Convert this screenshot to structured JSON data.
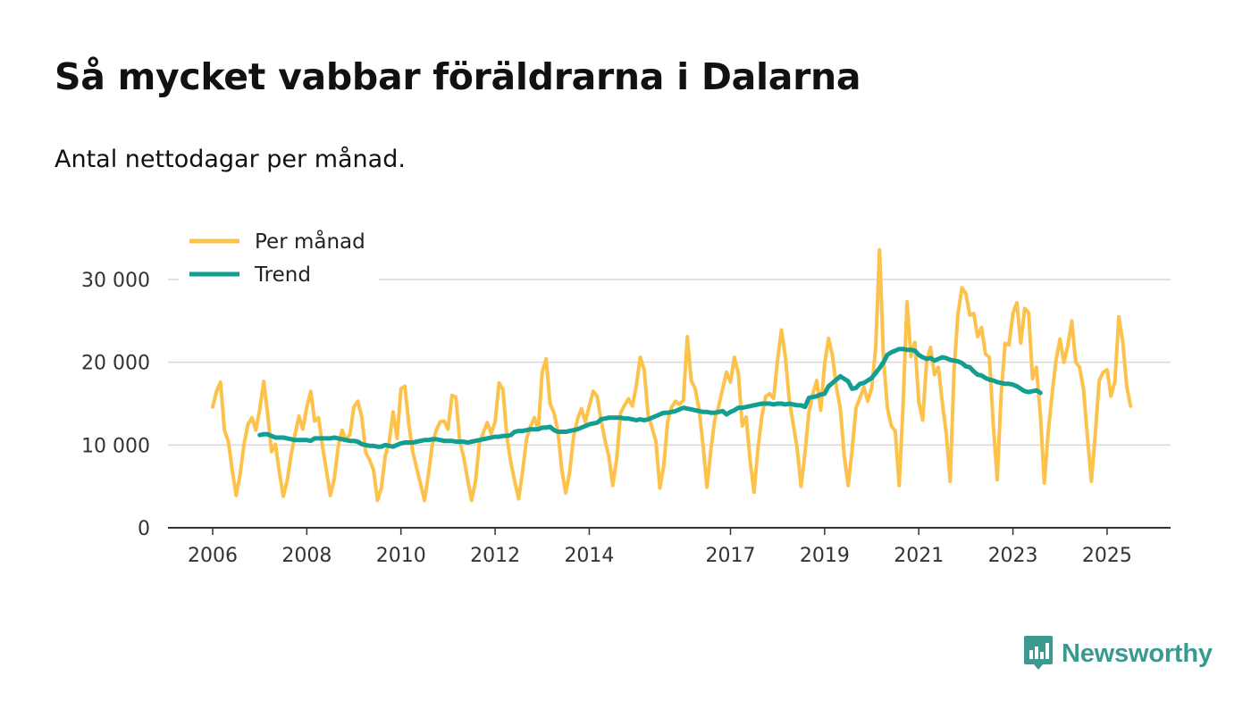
{
  "header": {
    "title": "Så mycket vabbar föräldrarna i Dalarna",
    "subtitle": "Antal nettodagar per månad."
  },
  "brand": {
    "name": "Newsworthy",
    "icon": "newsworthy-logo-icon"
  },
  "colors": {
    "monthly": "#fcc24c",
    "trend": "#129e91",
    "grid": "#d9d9d9",
    "axis": "#333333",
    "brand": "#3a9a90"
  },
  "chart_data": {
    "type": "line",
    "title": "Så mycket vabbar föräldrarna i Dalarna",
    "subtitle": "Antal nettodagar per månad.",
    "xlabel": "",
    "ylabel": "",
    "xlim": [
      2006.0,
      2026.3
    ],
    "ylim": [
      0,
      33000
    ],
    "grid": true,
    "legend": {
      "position": "top-left",
      "entries": [
        "Per månad",
        "Trend"
      ]
    },
    "y_ticks": [
      0,
      10000,
      20000,
      30000
    ],
    "y_tick_labels": [
      "0",
      "10 000",
      "20 000",
      "30 000"
    ],
    "x_ticks": [
      2006,
      2008,
      2010,
      2012,
      2014,
      2017,
      2019,
      2021,
      2023,
      2025
    ],
    "x_tick_labels": [
      "2006",
      "2008",
      "2010",
      "2012",
      "2014",
      "2017",
      "2019",
      "2021",
      "2023",
      "2025"
    ],
    "series": [
      {
        "name": "Per månad",
        "color": "#fcc24c",
        "start": 2006.0,
        "step": 0.0833333,
        "values": [
          14600,
          16500,
          17600,
          11800,
          10400,
          6900,
          3900,
          6500,
          10100,
          12500,
          13300,
          11800,
          14300,
          17700,
          13800,
          9200,
          10100,
          6700,
          3800,
          5700,
          8800,
          11300,
          13500,
          11900,
          14600,
          16500,
          12900,
          13300,
          9800,
          6900,
          3900,
          5900,
          9800,
          11800,
          10600,
          11300,
          14600,
          15300,
          13400,
          9100,
          8200,
          7000,
          3300,
          4800,
          8700,
          10400,
          14000,
          10800,
          16800,
          17100,
          12500,
          9200,
          7200,
          5300,
          3300,
          6500,
          10100,
          11800,
          12800,
          12900,
          11900,
          16000,
          15800,
          10400,
          8500,
          5800,
          3300,
          5600,
          10300,
          11500,
          12700,
          11400,
          12800,
          17500,
          16700,
          11000,
          7900,
          5600,
          3500,
          6800,
          10700,
          12200,
          13300,
          11900,
          18800,
          20400,
          15000,
          13900,
          11700,
          7000,
          4200,
          6700,
          11000,
          13100,
          14400,
          12800,
          14700,
          16500,
          15900,
          13000,
          10600,
          8600,
          5100,
          8400,
          13900,
          14800,
          15600,
          14700,
          17200,
          20600,
          19100,
          13600,
          12100,
          10400,
          4800,
          7500,
          12900,
          14600,
          15300,
          14900,
          15400,
          23100,
          17800,
          16800,
          14300,
          10000,
          4900,
          9400,
          13100,
          14700,
          16800,
          18800,
          17600,
          20600,
          18700,
          12300,
          13400,
          8100,
          4300,
          9600,
          13500,
          15900,
          16200,
          15600,
          20300,
          23900,
          20600,
          15400,
          12500,
          9600,
          5000,
          9100,
          14000,
          16200,
          17800,
          14200,
          19800,
          22900,
          20800,
          17000,
          14400,
          8700,
          5100,
          9400,
          14500,
          15700,
          17000,
          15300,
          16900,
          21700,
          33600,
          20500,
          14500,
          12300,
          11700,
          5100,
          14900,
          27300,
          20700,
          22400,
          15200,
          13000,
          20200,
          21800,
          18500,
          19400,
          15100,
          11400,
          5600,
          19100,
          25900,
          29000,
          28300,
          25700,
          25900,
          23100,
          24200,
          21000,
          20600,
          12400,
          5800,
          16200,
          22300,
          22100,
          25900,
          27200,
          22300,
          26500,
          26000,
          18000,
          19400,
          13600,
          5400,
          11600,
          16200,
          20300,
          22800,
          20000,
          22000,
          25000,
          20000,
          19400,
          16700,
          10900,
          5600,
          11400,
          17800,
          18800,
          19100,
          15900,
          17700,
          25500,
          22500,
          17100,
          14700
        ]
      },
      {
        "name": "Trend",
        "color": "#129e91",
        "start": 2007.0,
        "step": 0.0833333,
        "values": [
          11200,
          11300,
          11300,
          11100,
          10900,
          10900,
          10900,
          10800,
          10700,
          10600,
          10600,
          10600,
          10600,
          10500,
          10800,
          10800,
          10800,
          10800,
          10800,
          10900,
          10800,
          10700,
          10600,
          10500,
          10500,
          10400,
          10100,
          10000,
          9900,
          9900,
          9800,
          9800,
          10000,
          9900,
          9800,
          10000,
          10200,
          10300,
          10300,
          10300,
          10400,
          10500,
          10600,
          10600,
          10700,
          10700,
          10600,
          10500,
          10500,
          10500,
          10400,
          10400,
          10400,
          10300,
          10400,
          10500,
          10600,
          10700,
          10800,
          10900,
          11000,
          11000,
          11100,
          11100,
          11200,
          11600,
          11700,
          11700,
          11800,
          11900,
          11900,
          11900,
          12100,
          12100,
          12200,
          11800,
          11600,
          11600,
          11600,
          11700,
          11800,
          11900,
          12100,
          12300,
          12500,
          12600,
          12700,
          13100,
          13200,
          13300,
          13300,
          13300,
          13300,
          13200,
          13200,
          13100,
          13000,
          13100,
          13000,
          13100,
          13300,
          13500,
          13700,
          13900,
          13900,
          14000,
          14100,
          14300,
          14500,
          14400,
          14300,
          14200,
          14100,
          14000,
          14000,
          13900,
          13900,
          14000,
          14100,
          13700,
          14000,
          14200,
          14500,
          14500,
          14600,
          14700,
          14800,
          14900,
          15000,
          15000,
          15000,
          14900,
          15000,
          15000,
          14900,
          15000,
          14900,
          14800,
          14800,
          14600,
          15700,
          15800,
          15900,
          16100,
          16200,
          17100,
          17500,
          17900,
          18300,
          18000,
          17700,
          16800,
          16900,
          17400,
          17500,
          17800,
          18100,
          18700,
          19300,
          20000,
          20900,
          21200,
          21400,
          21600,
          21600,
          21500,
          21500,
          21400,
          20900,
          20600,
          20400,
          20500,
          20200,
          20400,
          20600,
          20500,
          20300,
          20200,
          20100,
          19900,
          19500,
          19400,
          18900,
          18500,
          18400,
          18100,
          17900,
          17800,
          17600,
          17500,
          17400,
          17400,
          17300,
          17100,
          16800,
          16500,
          16400,
          16500,
          16600,
          16300
        ]
      }
    ]
  }
}
